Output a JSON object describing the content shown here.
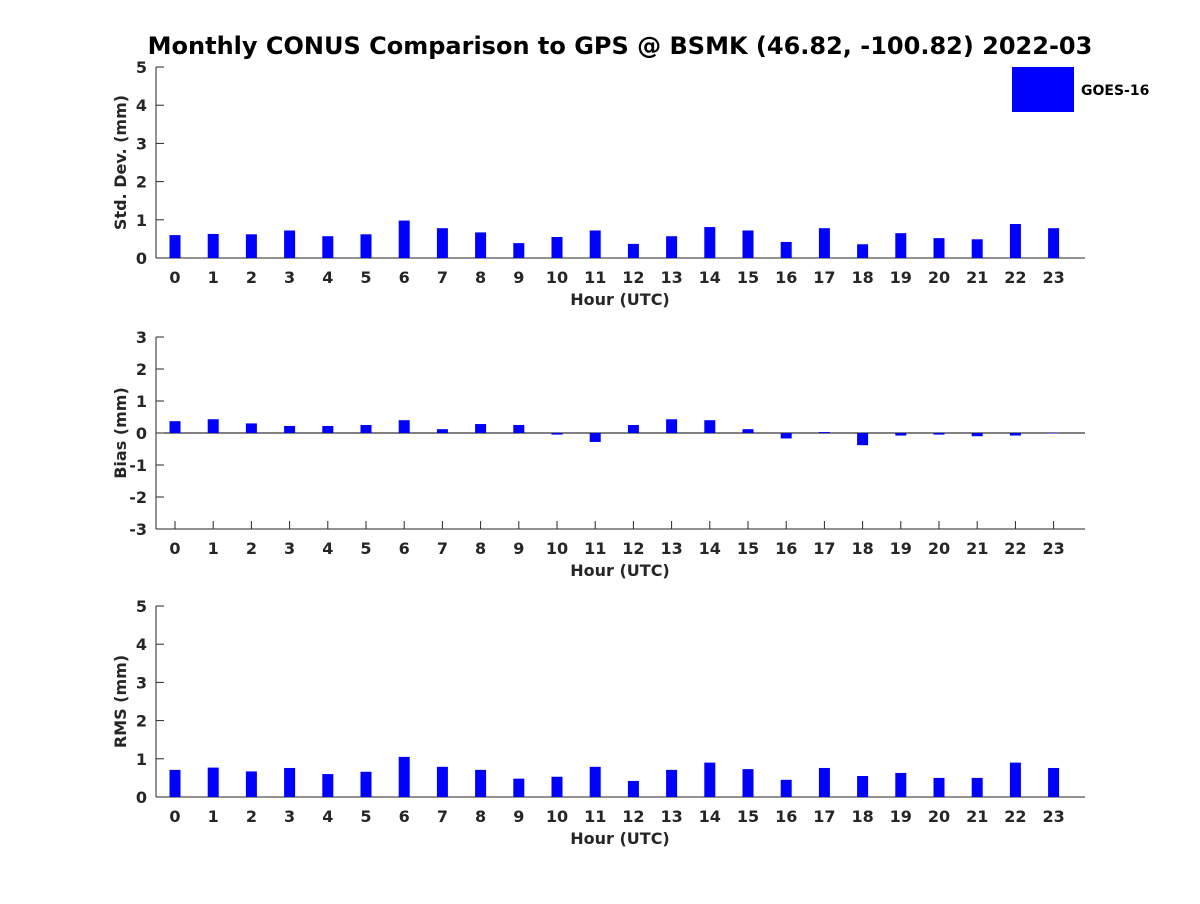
{
  "title": "Monthly CONUS Comparison to GPS @ BSMK (46.82, -100.82) 2022-03",
  "legend": {
    "label": "GOES-16",
    "color": "#0000ff",
    "placement": "top-right"
  },
  "colors": {
    "bar": "#0000ff",
    "axis": "#262626",
    "background": "#ffffff"
  },
  "chart_data": [
    {
      "type": "bar",
      "xlabel": "Hour (UTC)",
      "ylabel": "Std. Dev. (mm)",
      "ylim": [
        0,
        5
      ],
      "yticks": [
        0,
        1,
        2,
        3,
        4,
        5
      ],
      "categories": [
        "0",
        "1",
        "2",
        "3",
        "4",
        "5",
        "6",
        "7",
        "8",
        "9",
        "10",
        "11",
        "12",
        "13",
        "14",
        "15",
        "16",
        "17",
        "18",
        "19",
        "20",
        "21",
        "22",
        "23"
      ],
      "series": [
        {
          "name": "GOES-16",
          "values": [
            0.6,
            0.63,
            0.62,
            0.72,
            0.57,
            0.62,
            0.98,
            0.78,
            0.67,
            0.39,
            0.55,
            0.72,
            0.37,
            0.57,
            0.81,
            0.72,
            0.42,
            0.78,
            0.36,
            0.65,
            0.52,
            0.49,
            0.89,
            0.78
          ]
        }
      ],
      "grid": false
    },
    {
      "type": "bar",
      "xlabel": "Hour (UTC)",
      "ylabel": "Bias (mm)",
      "ylim": [
        -3,
        3
      ],
      "yticks": [
        -3,
        -2,
        -1,
        0,
        1,
        2,
        3
      ],
      "categories": [
        "0",
        "1",
        "2",
        "3",
        "4",
        "5",
        "6",
        "7",
        "8",
        "9",
        "10",
        "11",
        "12",
        "13",
        "14",
        "15",
        "16",
        "17",
        "18",
        "19",
        "20",
        "21",
        "22",
        "23"
      ],
      "series": [
        {
          "name": "GOES-16",
          "values": [
            0.37,
            0.43,
            0.3,
            0.22,
            0.22,
            0.25,
            0.4,
            0.12,
            0.28,
            0.25,
            -0.05,
            -0.28,
            0.25,
            0.43,
            0.4,
            0.12,
            -0.17,
            0.03,
            -0.38,
            -0.08,
            -0.05,
            -0.1,
            -0.08,
            0.0
          ]
        }
      ],
      "grid": false
    },
    {
      "type": "bar",
      "xlabel": "Hour (UTC)",
      "ylabel": "RMS (mm)",
      "ylim": [
        0,
        5
      ],
      "yticks": [
        0,
        1,
        2,
        3,
        4,
        5
      ],
      "categories": [
        "0",
        "1",
        "2",
        "3",
        "4",
        "5",
        "6",
        "7",
        "8",
        "9",
        "10",
        "11",
        "12",
        "13",
        "14",
        "15",
        "16",
        "17",
        "18",
        "19",
        "20",
        "21",
        "22",
        "23"
      ],
      "series": [
        {
          "name": "GOES-16",
          "values": [
            0.71,
            0.77,
            0.67,
            0.76,
            0.6,
            0.66,
            1.05,
            0.79,
            0.71,
            0.48,
            0.53,
            0.79,
            0.42,
            0.71,
            0.9,
            0.73,
            0.45,
            0.76,
            0.55,
            0.63,
            0.5,
            0.5,
            0.9,
            0.76
          ]
        }
      ],
      "grid": false
    }
  ]
}
